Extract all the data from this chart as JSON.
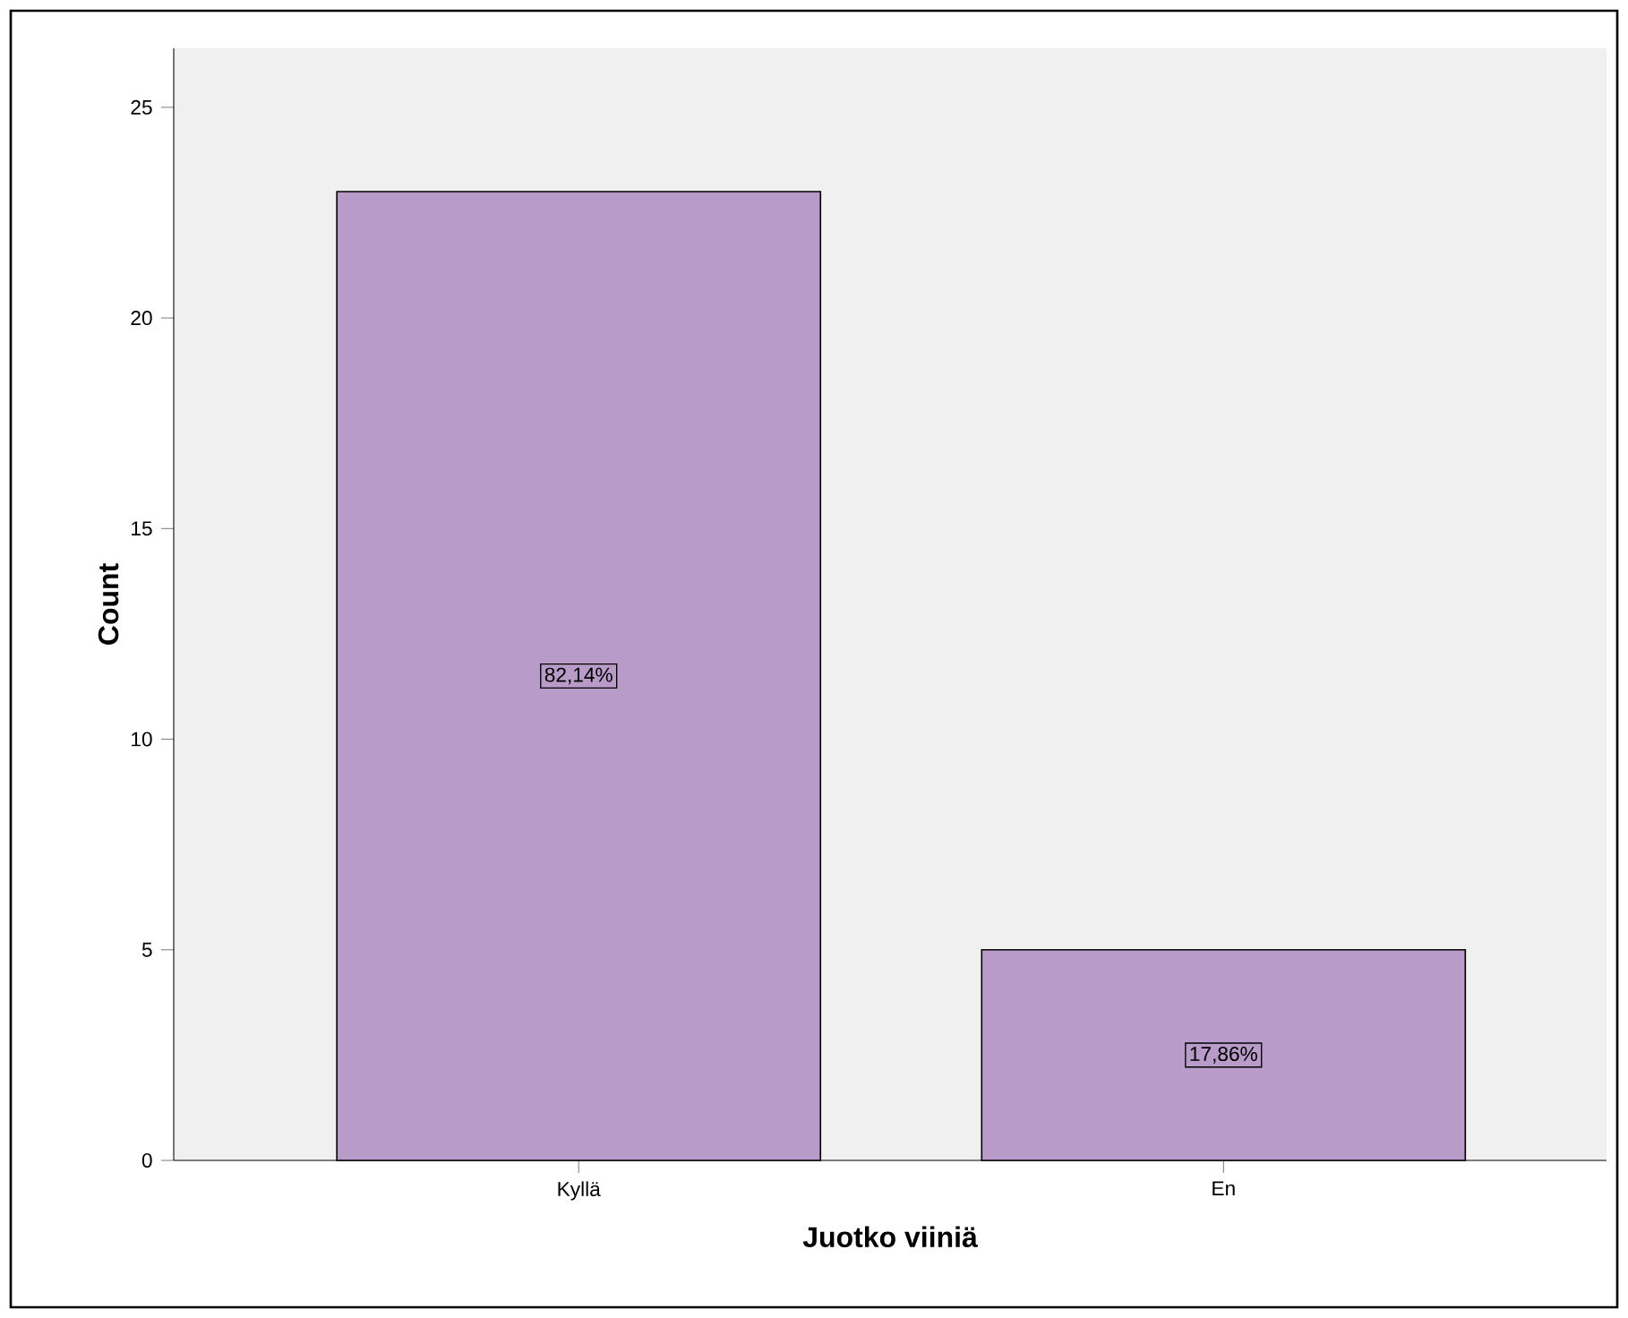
{
  "chart_data": {
    "type": "bar",
    "xlabel": "Juotko viiniä",
    "ylabel": "Count",
    "categories": [
      "Kyllä",
      "En"
    ],
    "values": [
      23,
      5
    ],
    "annotations": [
      {
        "text": "82,14%",
        "x": "Kyllä",
        "y": 11.5
      },
      {
        "text": "17,86%",
        "x": "En",
        "y": 2.5
      }
    ],
    "color": "#b89bc9",
    "ylim": [
      0,
      26.4
    ],
    "yticks": [
      0,
      5,
      10,
      15,
      20,
      25
    ],
    "grid": false
  }
}
